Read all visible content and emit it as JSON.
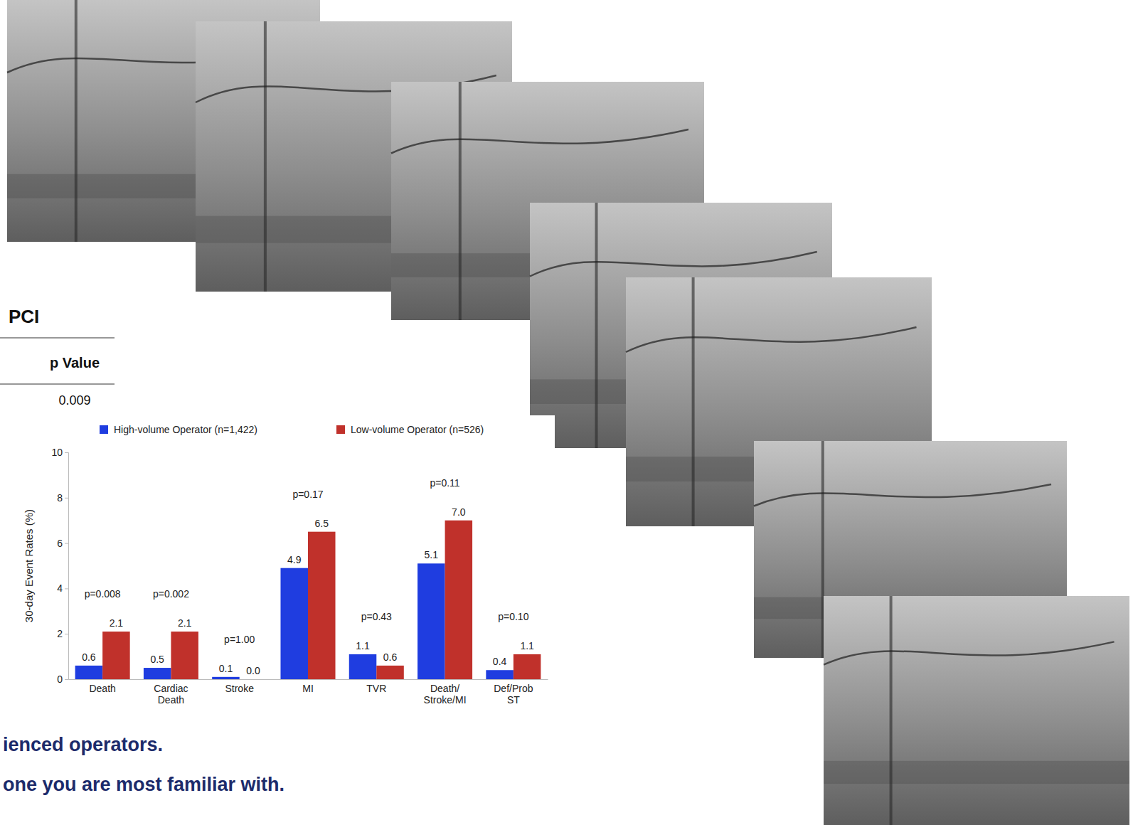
{
  "chart_data": {
    "type": "bar",
    "categories": [
      "Death",
      "Cardiac Death",
      "Stroke",
      "MI",
      "TVR",
      "Death/Stroke/MI",
      "Def/Prob ST"
    ],
    "series": [
      {
        "name": "High-volume Operator (n=1,422)",
        "color": "#1f3de0",
        "values": [
          0.6,
          0.5,
          0.1,
          4.9,
          1.1,
          5.1,
          0.4
        ]
      },
      {
        "name": "Low-volume Operator (n=526)",
        "color": "#c0312b",
        "values": [
          2.1,
          2.1,
          0.0,
          6.5,
          0.6,
          7.0,
          1.1
        ],
        "value_labels": [
          "2.1",
          "2.1",
          "0.0",
          "6.5",
          "0.6",
          "7.0",
          "1.1"
        ]
      }
    ],
    "p_values": [
      "p=0.008",
      "p=0.002",
      "p=1.00",
      "p=0.17",
      "p=0.43",
      "p=0.11",
      "p=0.10"
    ],
    "y_label": "30-day Event Rates (%)",
    "ylim": [
      0,
      10
    ],
    "yticks": [
      0,
      2,
      4,
      6,
      8,
      10
    ],
    "grid": false,
    "legend": "top",
    "data_labels": true
  },
  "slide": {
    "heading": "PCI",
    "table_header": "p Value",
    "table_value": "0.009",
    "footer_lines": [
      "ienced operators.",
      "one you are most familiar with."
    ]
  }
}
